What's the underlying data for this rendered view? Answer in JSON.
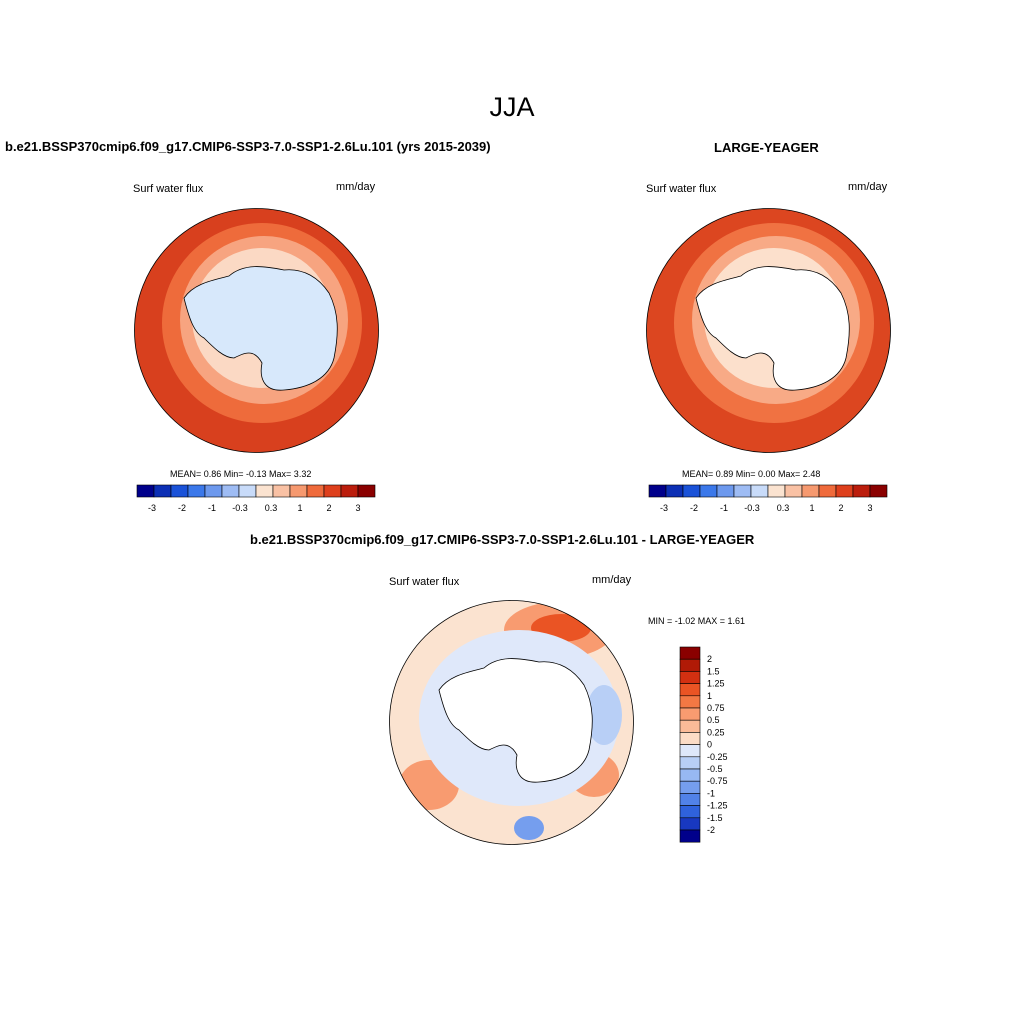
{
  "page_title": "JJA",
  "panels": [
    {
      "title": "b.e21.BSSP370cmip6.f09_g17.CMIP6-SSP3-7.0-SSP1-2.6Lu.101 (yrs 2015-2039)",
      "variable": "Surf water flux",
      "units": "mm/day",
      "stats_text": "MEAN=   0.86  Min=  -0.13  Max=   3.32",
      "map_colors": {
        "far": "#d8401e",
        "mid": "#ee6b3b",
        "near": "#f7a480",
        "coast": "#fbd9c4",
        "land": "#d7e8fb"
      }
    },
    {
      "title": "LARGE-YEAGER",
      "variable": "Surf water flux",
      "units": "mm/day",
      "stats_text": "MEAN=   0.89  Min=   0.00  Max=   2.48",
      "map_colors": {
        "far": "#dc4620",
        "mid": "#f07242",
        "near": "#f8aa86",
        "coast": "#fce0cc",
        "land": "#ffffff"
      }
    }
  ],
  "horizontal_colorbar": {
    "colors": [
      "#00008b",
      "#0c2fb5",
      "#1a52d8",
      "#3b78ea",
      "#6d99ee",
      "#9ebcf4",
      "#c8dbf9",
      "#fbe3d0",
      "#f9c1a4",
      "#f6996f",
      "#ef6a3b",
      "#de3f1c",
      "#bb1d0c",
      "#8a0000"
    ],
    "tick_labels": [
      "-3",
      "-2",
      "-1",
      "-0.3",
      "0.3",
      "1",
      "2",
      "3"
    ]
  },
  "difference_panel": {
    "title": "b.e21.BSSP370cmip6.f09_g17.CMIP6-SSP3-7.0-SSP1-2.6Lu.101 - LARGE-YEAGER",
    "variable": "Surf water flux",
    "units": "mm/day",
    "minmax_text": "MIN =  -1.02 MAX =   1.61",
    "colorbar": {
      "colors": [
        "#8a0000",
        "#b01a06",
        "#d33011",
        "#ea5424",
        "#f37844",
        "#f89b70",
        "#fbbb98",
        "#fcdcc6",
        "#dfe8fa",
        "#b8cff6",
        "#97b8f2",
        "#759eee",
        "#5182e8",
        "#2f62dc",
        "#1838c0",
        "#00008b"
      ],
      "labels": [
        "2",
        "1.5",
        "1.25",
        "1",
        "0.75",
        "0.5",
        "0.25",
        "0",
        "-0.25",
        "-0.5",
        "-0.75",
        "-1",
        "-1.25",
        "-1.5",
        "-2"
      ]
    }
  }
}
